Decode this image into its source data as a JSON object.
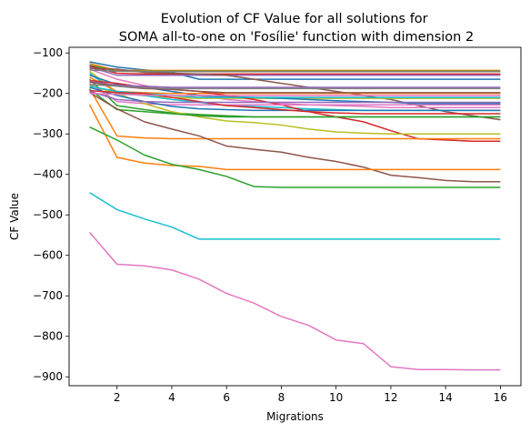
{
  "chart_data": {
    "type": "line",
    "title": "Evolution of CF Value for all solutions for\nSOMA all-to-one on 'Fosílie' function with dimension 2",
    "xlabel": "Migrations",
    "ylabel": "CF Value",
    "xlim": [
      0.25,
      16.75
    ],
    "ylim": [
      -922,
      -86
    ],
    "xticks": [
      2,
      4,
      6,
      8,
      10,
      12,
      14,
      16
    ],
    "yticks": [
      -900,
      -800,
      -700,
      -600,
      -500,
      -400,
      -300,
      -200,
      -100
    ],
    "x": [
      1,
      2,
      3,
      4,
      5,
      6,
      7,
      8,
      9,
      10,
      11,
      12,
      13,
      14,
      15,
      16
    ],
    "grid": false,
    "series": [
      {
        "color": "#1f77b4",
        "values": [
          -122,
          -135,
          -142,
          -148,
          -165,
          -165,
          -165,
          -165,
          -165,
          -165,
          -165,
          -165,
          -165,
          -165,
          -165,
          -165
        ]
      },
      {
        "color": "#ff7f0e",
        "values": [
          -126,
          -143,
          -143,
          -143,
          -143,
          -143,
          -143,
          -143,
          -143,
          -143,
          -143,
          -143,
          -143,
          -143,
          -143,
          -143
        ]
      },
      {
        "color": "#2ca02c",
        "values": [
          -130,
          -145,
          -145,
          -145,
          -145,
          -145,
          -145,
          -145,
          -145,
          -145,
          -145,
          -145,
          -145,
          -145,
          -145,
          -145
        ]
      },
      {
        "color": "#d62728",
        "values": [
          -132,
          -150,
          -152,
          -152,
          -152,
          -152,
          -152,
          -152,
          -152,
          -152,
          -152,
          -152,
          -152,
          -152,
          -152,
          -152
        ]
      },
      {
        "color": "#9467bd",
        "values": [
          -135,
          -155,
          -155,
          -155,
          -155,
          -155,
          -155,
          -155,
          -155,
          -155,
          -155,
          -155,
          -155,
          -155,
          -155,
          -155
        ]
      },
      {
        "color": "#8c564b",
        "values": [
          -138,
          -140,
          -148,
          -150,
          -152,
          -155,
          -165,
          -175,
          -185,
          -195,
          -205,
          -215,
          -230,
          -245,
          -255,
          -265
        ]
      },
      {
        "color": "#e377c2",
        "values": [
          -140,
          -165,
          -180,
          -195,
          -205,
          -215,
          -220,
          -225,
          -228,
          -230,
          -232,
          -235,
          -235,
          -235,
          -235,
          -235
        ]
      },
      {
        "color": "#7f7f7f",
        "values": [
          -142,
          -145,
          -146,
          -146,
          -146,
          -146,
          -146,
          -146,
          -146,
          -146,
          -146,
          -146,
          -146,
          -146,
          -146,
          -146
        ]
      },
      {
        "color": "#bcbd22",
        "values": [
          -145,
          -198,
          -205,
          -210,
          -212,
          -212,
          -212,
          -212,
          -212,
          -212,
          -212,
          -212,
          -212,
          -212,
          -212,
          -212
        ]
      },
      {
        "color": "#17becf",
        "values": [
          -150,
          -200,
          -205,
          -215,
          -222,
          -230,
          -232,
          -235,
          -238,
          -240,
          -242,
          -242,
          -242,
          -242,
          -242,
          -242
        ]
      },
      {
        "color": "#1f77b4",
        "values": [
          -155,
          -178,
          -185,
          -195,
          -205,
          -208,
          -210,
          -212,
          -215,
          -218,
          -220,
          -222,
          -225,
          -225,
          -225,
          -225
        ]
      },
      {
        "color": "#ff7f0e",
        "values": [
          -160,
          -195,
          -198,
          -200,
          -200,
          -200,
          -200,
          -200,
          -200,
          -200,
          -200,
          -200,
          -200,
          -200,
          -200,
          -200
        ]
      },
      {
        "color": "#2ca02c",
        "values": [
          -165,
          -230,
          -240,
          -248,
          -252,
          -255,
          -258,
          -258,
          -258,
          -258,
          -258,
          -258,
          -258,
          -258,
          -258,
          -258
        ]
      },
      {
        "color": "#d62728",
        "values": [
          -168,
          -175,
          -185,
          -190,
          -195,
          -205,
          -215,
          -228,
          -245,
          -258,
          -270,
          -292,
          -312,
          -315,
          -318,
          -318
        ]
      },
      {
        "color": "#9467bd",
        "values": [
          -170,
          -180,
          -182,
          -185,
          -185,
          -185,
          -185,
          -185,
          -185,
          -185,
          -185,
          -185,
          -185,
          -185,
          -185,
          -185
        ]
      },
      {
        "color": "#8c564b",
        "values": [
          -172,
          -182,
          -188,
          -190,
          -195,
          -198,
          -198,
          -198,
          -198,
          -198,
          -198,
          -198,
          -198,
          -198,
          -198,
          -198
        ]
      },
      {
        "color": "#e377c2",
        "values": [
          -175,
          -220,
          -225,
          -228,
          -228,
          -228,
          -228,
          -228,
          -228,
          -228,
          -228,
          -228,
          -228,
          -228,
          -228,
          -228
        ]
      },
      {
        "color": "#7f7f7f",
        "values": [
          -178,
          -182,
          -186,
          -188,
          -188,
          -188,
          -188,
          -188,
          -188,
          -188,
          -188,
          -188,
          -188,
          -188,
          -188,
          -188
        ]
      },
      {
        "color": "#bcbd22",
        "values": [
          -180,
          -200,
          -225,
          -245,
          -258,
          -268,
          -272,
          -278,
          -288,
          -295,
          -298,
          -300,
          -300,
          -300,
          -300,
          -300
        ]
      },
      {
        "color": "#17becf",
        "values": [
          -182,
          -195,
          -200,
          -205,
          -210,
          -210,
          -210,
          -210,
          -210,
          -210,
          -210,
          -210,
          -210,
          -210,
          -210,
          -210
        ]
      },
      {
        "color": "#1f77b4",
        "values": [
          -185,
          -205,
          -220,
          -232,
          -238,
          -240,
          -242,
          -242,
          -242,
          -242,
          -242,
          -242,
          -242,
          -242,
          -242,
          -242
        ]
      },
      {
        "color": "#ff7f0e",
        "values": [
          -188,
          -305,
          -310,
          -312,
          -312,
          -312,
          -312,
          -312,
          -312,
          -312,
          -312,
          -312,
          -312,
          -312,
          -312,
          -312
        ]
      },
      {
        "color": "#2ca02c",
        "values": [
          -190,
          -240,
          -245,
          -250,
          -255,
          -258,
          -258,
          -258,
          -258,
          -258,
          -258,
          -258,
          -258,
          -258,
          -258,
          -258
        ]
      },
      {
        "color": "#d62728",
        "values": [
          -193,
          -198,
          -200,
          -210,
          -220,
          -230,
          -235,
          -240,
          -245,
          -248,
          -250,
          -250,
          -250,
          -250,
          -250,
          -250
        ]
      },
      {
        "color": "#9467bd",
        "values": [
          -195,
          -215,
          -220,
          -222,
          -222,
          -222,
          -222,
          -222,
          -222,
          -222,
          -222,
          -222,
          -222,
          -222,
          -222,
          -222
        ]
      },
      {
        "color": "#8c564b",
        "values": [
          -198,
          -238,
          -270,
          -288,
          -305,
          -330,
          -338,
          -345,
          -358,
          -368,
          -382,
          -402,
          -408,
          -415,
          -418,
          -418
        ]
      },
      {
        "color": "#e377c2",
        "values": [
          -200,
          -202,
          -204,
          -205,
          -205,
          -205,
          -205,
          -205,
          -205,
          -205,
          -205,
          -205,
          -205,
          -205,
          -205,
          -205
        ]
      },
      {
        "color": "#ff7f0e",
        "values": [
          -228,
          -358,
          -372,
          -378,
          -380,
          -388,
          -388,
          -388,
          -388,
          -388,
          -388,
          -388,
          -388,
          -388,
          -388,
          -388
        ]
      },
      {
        "color": "#2ca02c",
        "values": [
          -283,
          -315,
          -352,
          -375,
          -388,
          -405,
          -430,
          -432,
          -432,
          -432,
          -432,
          -432,
          -432,
          -432,
          -432,
          -432
        ]
      },
      {
        "color": "#17becf",
        "values": [
          -445,
          -487,
          -510,
          -530,
          -560,
          -560,
          -560,
          -560,
          -560,
          -560,
          -560,
          -560,
          -560,
          -560,
          -560,
          -560
        ]
      },
      {
        "color": "#e377c2",
        "values": [
          -543,
          -622,
          -626,
          -636,
          -659,
          -694,
          -718,
          -751,
          -773,
          -809,
          -818,
          -875,
          -882,
          -882,
          -883,
          -883
        ]
      }
    ]
  }
}
